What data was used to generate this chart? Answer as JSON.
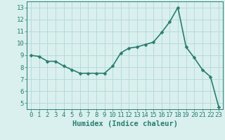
{
  "x": [
    0,
    1,
    2,
    3,
    4,
    5,
    6,
    7,
    8,
    9,
    10,
    11,
    12,
    13,
    14,
    15,
    16,
    17,
    18,
    19,
    20,
    21,
    22,
    23
  ],
  "y": [
    9.0,
    8.9,
    8.5,
    8.5,
    8.1,
    7.8,
    7.5,
    7.5,
    7.5,
    7.5,
    8.1,
    9.2,
    9.6,
    9.7,
    9.9,
    10.1,
    10.9,
    11.8,
    13.0,
    9.7,
    8.8,
    7.8,
    7.2,
    4.7
  ],
  "line_color": "#2a7d6e",
  "marker": "D",
  "marker_size": 2.5,
  "bg_color": "#d9f0ef",
  "grid_color": "#b8dada",
  "xlabel": "Humidex (Indice chaleur)",
  "xlim": [
    -0.5,
    23.5
  ],
  "ylim": [
    4.5,
    13.5
  ],
  "xticks": [
    0,
    1,
    2,
    3,
    4,
    5,
    6,
    7,
    8,
    9,
    10,
    11,
    12,
    13,
    14,
    15,
    16,
    17,
    18,
    19,
    20,
    21,
    22,
    23
  ],
  "yticks": [
    5,
    6,
    7,
    8,
    9,
    10,
    11,
    12,
    13
  ],
  "tick_color": "#2a7d6e",
  "label_color": "#2a7d6e",
  "xlabel_fontsize": 7.5,
  "tick_fontsize": 6.5,
  "line_width": 1.2
}
